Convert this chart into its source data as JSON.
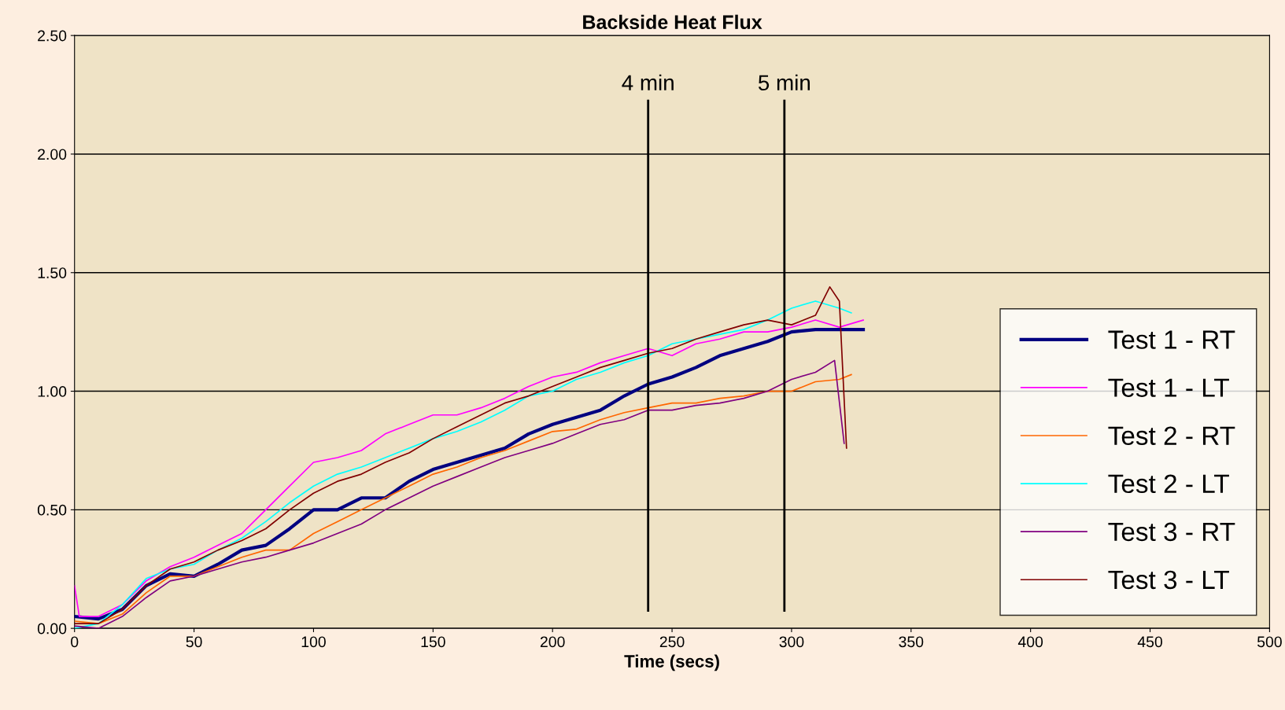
{
  "chart_data": {
    "type": "line",
    "title": "Backside Heat Flux",
    "xlabel": "Time (secs)",
    "xlim": [
      0,
      500
    ],
    "xticks": [
      0,
      50,
      100,
      150,
      200,
      250,
      300,
      350,
      400,
      450,
      500
    ],
    "ylim": [
      0,
      2.5
    ],
    "yticks": [
      {
        "value": 0,
        "label": "0.00"
      },
      {
        "value": 0.5,
        "label": "0.50"
      },
      {
        "value": 1,
        "label": "1.00"
      },
      {
        "value": 1.5,
        "label": "1.50"
      },
      {
        "value": 2,
        "label": "2.00"
      },
      {
        "value": 2.5,
        "label": "2.50"
      }
    ],
    "grid": "y",
    "legend": "bottom right",
    "marker": "none",
    "line_style": "solid",
    "ref_lines": [
      {
        "axis": "x",
        "value": 240,
        "label": "4 min",
        "color": "#000000"
      },
      {
        "axis": "x",
        "value": 297,
        "label": "5 min",
        "color": "#000000"
      }
    ],
    "series": [
      {
        "name": "Test 1 - RT",
        "color": "#000080",
        "x": [
          0,
          10,
          20,
          30,
          40,
          50,
          60,
          70,
          80,
          90,
          100,
          110,
          120,
          130,
          140,
          150,
          160,
          170,
          180,
          190,
          200,
          210,
          220,
          230,
          240,
          250,
          260,
          270,
          280,
          290,
          300,
          310,
          320,
          330
        ],
        "values": [
          0.05,
          0.04,
          0.08,
          0.18,
          0.23,
          0.22,
          0.27,
          0.33,
          0.35,
          0.42,
          0.5,
          0.5,
          0.55,
          0.55,
          0.62,
          0.67,
          0.7,
          0.73,
          0.76,
          0.82,
          0.86,
          0.89,
          0.92,
          0.98,
          1.03,
          1.06,
          1.1,
          1.15,
          1.18,
          1.21,
          1.25,
          1.26,
          1.26,
          1.26
        ]
      },
      {
        "name": "Test 1 - LT",
        "color": "#ff00ff",
        "x": [
          0,
          2,
          10,
          20,
          30,
          40,
          50,
          60,
          70,
          80,
          90,
          100,
          110,
          120,
          130,
          140,
          150,
          160,
          170,
          180,
          190,
          200,
          210,
          220,
          230,
          240,
          250,
          260,
          270,
          280,
          290,
          300,
          310,
          320,
          330
        ],
        "values": [
          0.18,
          0.05,
          0.05,
          0.1,
          0.2,
          0.26,
          0.3,
          0.35,
          0.4,
          0.5,
          0.6,
          0.7,
          0.72,
          0.75,
          0.82,
          0.86,
          0.9,
          0.9,
          0.93,
          0.97,
          1.02,
          1.06,
          1.08,
          1.12,
          1.15,
          1.18,
          1.15,
          1.2,
          1.22,
          1.25,
          1.25,
          1.27,
          1.3,
          1.27,
          1.3
        ]
      },
      {
        "name": "Test 2 - RT",
        "color": "#ff6600",
        "x": [
          0,
          10,
          20,
          30,
          40,
          50,
          60,
          70,
          80,
          90,
          100,
          110,
          120,
          130,
          140,
          150,
          160,
          170,
          180,
          190,
          200,
          210,
          220,
          230,
          240,
          250,
          260,
          270,
          280,
          290,
          300,
          310,
          320,
          325
        ],
        "values": [
          0.03,
          0.02,
          0.06,
          0.15,
          0.22,
          0.22,
          0.26,
          0.3,
          0.33,
          0.33,
          0.4,
          0.45,
          0.5,
          0.55,
          0.6,
          0.65,
          0.68,
          0.72,
          0.75,
          0.79,
          0.83,
          0.84,
          0.88,
          0.91,
          0.93,
          0.95,
          0.95,
          0.97,
          0.98,
          1.0,
          1.0,
          1.04,
          1.05,
          1.07
        ]
      },
      {
        "name": "Test 2 - LT",
        "color": "#00ffff",
        "x": [
          0,
          10,
          20,
          30,
          40,
          50,
          60,
          70,
          80,
          90,
          100,
          110,
          120,
          130,
          140,
          150,
          160,
          170,
          180,
          190,
          200,
          210,
          220,
          230,
          240,
          250,
          260,
          270,
          280,
          290,
          300,
          310,
          320,
          325
        ],
        "values": [
          0.0,
          0.02,
          0.1,
          0.21,
          0.25,
          0.27,
          0.33,
          0.38,
          0.45,
          0.53,
          0.6,
          0.65,
          0.68,
          0.72,
          0.76,
          0.8,
          0.83,
          0.87,
          0.92,
          0.98,
          1.0,
          1.05,
          1.08,
          1.12,
          1.15,
          1.2,
          1.22,
          1.24,
          1.26,
          1.3,
          1.35,
          1.38,
          1.35,
          1.33
        ]
      },
      {
        "name": "Test 3 - RT",
        "color": "#800080",
        "x": [
          0,
          10,
          20,
          30,
          40,
          50,
          60,
          70,
          80,
          90,
          100,
          110,
          120,
          130,
          140,
          150,
          160,
          170,
          180,
          190,
          200,
          210,
          220,
          230,
          240,
          250,
          260,
          270,
          280,
          290,
          300,
          310,
          318,
          322
        ],
        "values": [
          0.01,
          0.0,
          0.05,
          0.13,
          0.2,
          0.22,
          0.25,
          0.28,
          0.3,
          0.33,
          0.36,
          0.4,
          0.44,
          0.5,
          0.55,
          0.6,
          0.64,
          0.68,
          0.72,
          0.75,
          0.78,
          0.82,
          0.86,
          0.88,
          0.92,
          0.92,
          0.94,
          0.95,
          0.97,
          1.0,
          1.05,
          1.08,
          1.13,
          0.78
        ]
      },
      {
        "name": "Test 3 - LT",
        "color": "#800000",
        "x": [
          0,
          10,
          20,
          30,
          40,
          50,
          60,
          70,
          80,
          90,
          100,
          110,
          120,
          130,
          140,
          150,
          160,
          170,
          180,
          190,
          200,
          210,
          220,
          230,
          240,
          250,
          260,
          270,
          280,
          290,
          300,
          310,
          316,
          320,
          323
        ],
        "values": [
          0.02,
          0.02,
          0.08,
          0.18,
          0.25,
          0.28,
          0.33,
          0.37,
          0.42,
          0.5,
          0.57,
          0.62,
          0.65,
          0.7,
          0.74,
          0.8,
          0.85,
          0.9,
          0.95,
          0.98,
          1.02,
          1.06,
          1.1,
          1.13,
          1.16,
          1.18,
          1.22,
          1.25,
          1.28,
          1.3,
          1.28,
          1.32,
          1.44,
          1.38,
          0.76
        ]
      }
    ]
  }
}
